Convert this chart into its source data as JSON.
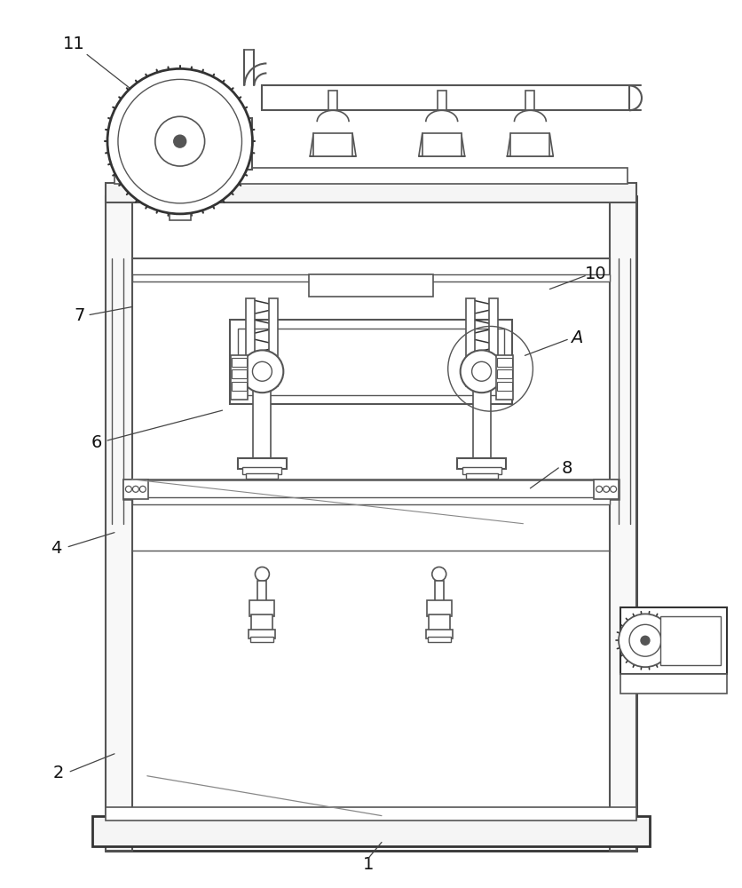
{
  "bg_color": "#ffffff",
  "lc": "#555555",
  "lc2": "#333333",
  "lc_thin": "#777777"
}
